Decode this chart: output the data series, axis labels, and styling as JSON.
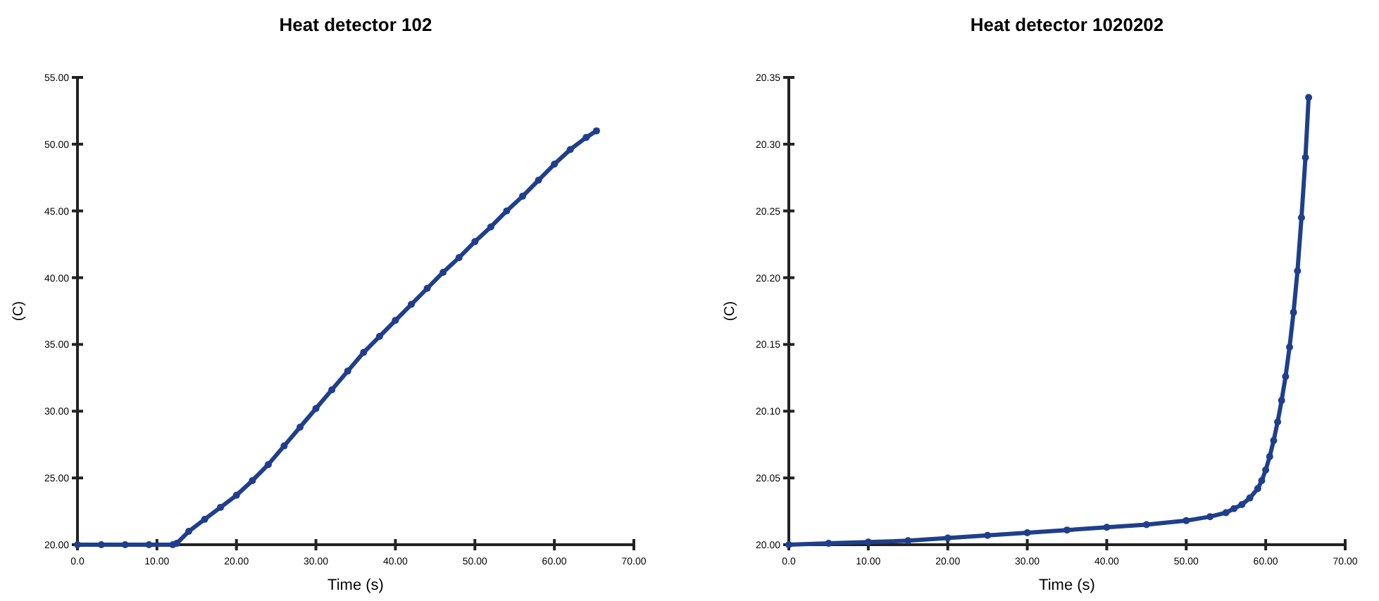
{
  "chart_data": [
    {
      "type": "line",
      "title": "Heat detector 102",
      "xlabel": "Time (s)",
      "ylabel": "(C)",
      "marker": "circle",
      "line_style": "solid",
      "grid": false,
      "xlim": [
        0,
        70
      ],
      "ylim": [
        20,
        55
      ],
      "xticks": [
        {
          "value": 0,
          "label": "0.0"
        },
        {
          "value": 10,
          "label": "10.00"
        },
        {
          "value": 20,
          "label": "20.00"
        },
        {
          "value": 30,
          "label": "30.00"
        },
        {
          "value": 40,
          "label": "40.00"
        },
        {
          "value": 50,
          "label": "50.00"
        },
        {
          "value": 60,
          "label": "60.00"
        },
        {
          "value": 70,
          "label": "70.00"
        }
      ],
      "yticks": [
        {
          "value": 20,
          "label": "20.00"
        },
        {
          "value": 25,
          "label": "25.00"
        },
        {
          "value": 30,
          "label": "30.00"
        },
        {
          "value": 35,
          "label": "35.00"
        },
        {
          "value": 40,
          "label": "40.00"
        },
        {
          "value": 45,
          "label": "45.00"
        },
        {
          "value": 50,
          "label": "50.00"
        },
        {
          "value": 55,
          "label": "55.00"
        }
      ],
      "series": [
        {
          "color": "#1f3f8c",
          "x": [
            0,
            3,
            6,
            9,
            12,
            12.5,
            14,
            16,
            18,
            20,
            22,
            24,
            26,
            28,
            30,
            32,
            34,
            36,
            38,
            40,
            42,
            44,
            46,
            48,
            50,
            52,
            54,
            56,
            58,
            60,
            62,
            64,
            65.3
          ],
          "values": [
            20,
            20,
            20,
            20,
            20,
            20.1,
            21,
            21.9,
            22.8,
            23.7,
            24.8,
            26,
            27.4,
            28.8,
            30.2,
            31.6,
            33,
            34.4,
            35.6,
            36.8,
            38,
            39.2,
            40.4,
            41.5,
            42.7,
            43.8,
            45,
            46.1,
            47.3,
            48.5,
            49.6,
            50.5,
            51
          ]
        }
      ]
    },
    {
      "type": "line",
      "title": "Heat detector 1020202",
      "xlabel": "Time (s)",
      "ylabel": "(C)",
      "marker": "circle",
      "line_style": "solid",
      "grid": false,
      "xlim": [
        0,
        70
      ],
      "ylim": [
        20,
        20.35
      ],
      "xticks": [
        {
          "value": 0,
          "label": "0.0"
        },
        {
          "value": 10,
          "label": "10.00"
        },
        {
          "value": 20,
          "label": "20.00"
        },
        {
          "value": 30,
          "label": "30.00"
        },
        {
          "value": 40,
          "label": "40.00"
        },
        {
          "value": 50,
          "label": "50.00"
        },
        {
          "value": 60,
          "label": "60.00"
        },
        {
          "value": 70,
          "label": "70.00"
        }
      ],
      "yticks": [
        {
          "value": 20,
          "label": "20.00"
        },
        {
          "value": 20.05,
          "label": "20.05"
        },
        {
          "value": 20.1,
          "label": "20.10"
        },
        {
          "value": 20.15,
          "label": "20.15"
        },
        {
          "value": 20.2,
          "label": "20.20"
        },
        {
          "value": 20.25,
          "label": "20.25"
        },
        {
          "value": 20.3,
          "label": "20.30"
        },
        {
          "value": 20.35,
          "label": "20.35"
        }
      ],
      "series": [
        {
          "color": "#1f3f8c",
          "x": [
            0,
            5,
            10,
            15,
            20,
            25,
            30,
            35,
            40,
            45,
            50,
            53,
            55,
            56,
            57,
            58,
            59,
            59.5,
            60,
            60.5,
            61,
            61.5,
            62,
            62.5,
            63,
            63.5,
            64,
            64.5,
            65,
            65.4
          ],
          "values": [
            20,
            20.001,
            20.002,
            20.003,
            20.005,
            20.007,
            20.009,
            20.011,
            20.013,
            20.015,
            20.018,
            20.021,
            20.024,
            20.027,
            20.03,
            20.035,
            20.042,
            20.048,
            20.056,
            20.066,
            20.078,
            20.092,
            20.108,
            20.126,
            20.148,
            20.174,
            20.205,
            20.245,
            20.29,
            20.335
          ]
        }
      ]
    }
  ]
}
